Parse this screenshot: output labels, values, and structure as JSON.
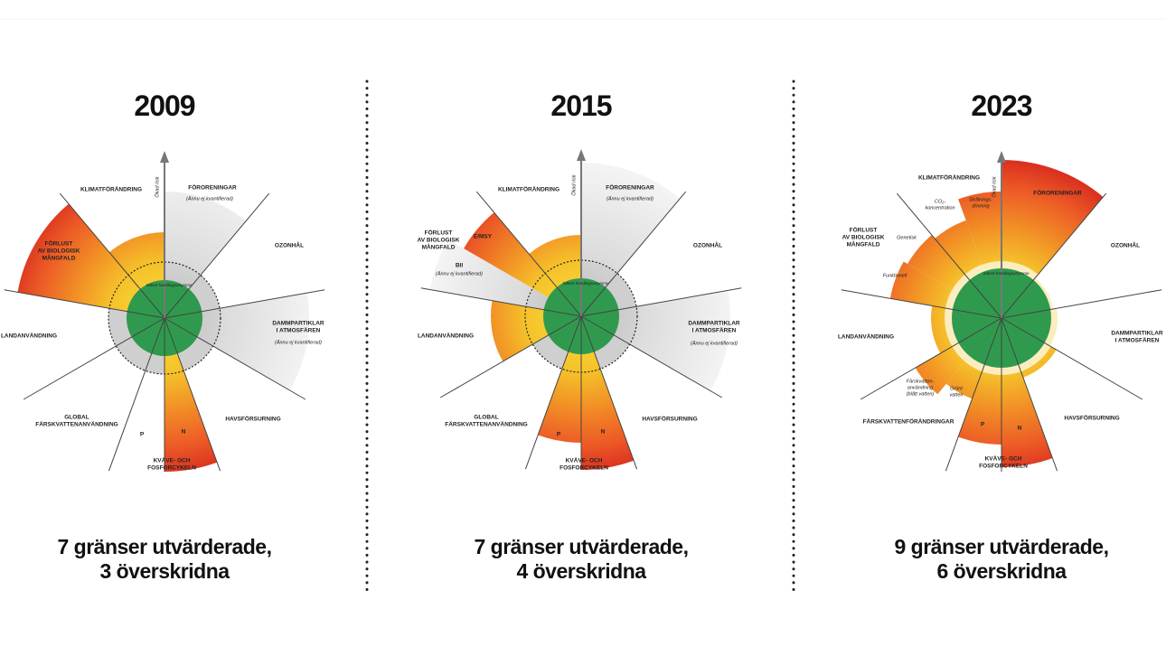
{
  "panels": [
    {
      "year": "2009",
      "labels": [
        "KLIMATFÖRÄNDRING",
        "FÖRORENINGAR",
        "(Ännu ej kvantifierad)",
        "OZONHÅL",
        "FÖRLUST",
        "AV BIOLOGISK",
        "MÅNGFALD",
        "LANDANVÄNDNING",
        "DAMMPARTIKLAR",
        "I ATMOSFÄREN",
        "(Ännu ej kvantifierad)",
        "GLOBAL",
        "FÄRSKVATTENANVÄNDNING",
        "P",
        "N",
        "HAVSFÖRSURNING",
        "KVÄVE- OCH",
        "FOSFORCYKELN"
      ],
      "axis_label": "Ökad risk",
      "safe_label": "Säkert handlingsutrymme",
      "caption": [
        "7 gränser utvärderade,",
        "3 överskridna"
      ]
    },
    {
      "year": "2015",
      "labels": [
        "KLIMATFÖRÄNDRING",
        "FÖRORENINGAR",
        "(Ännu ej kvantifierad)",
        "OZONHÅL",
        "FÖRLUST",
        "AV BIOLOGISK",
        "MÅNGFALD",
        "E/MSY",
        "BII",
        "(Ännu ej kvantifierad)",
        "LANDANVÄNDNING",
        "DAMMPARTIKLAR",
        "I ATMOSFÄREN",
        "(Ännu ej kvantifierad)",
        "GLOBAL",
        "FÄRSKVATTENANVÄNDNING",
        "P",
        "N",
        "HAVSFÖRSURNING",
        "KVÄVE- OCH",
        "FOSFORCYKELN"
      ],
      "axis_label": "Ökad risk",
      "safe_label": "Säkert handlingsutrymme",
      "caption": [
        "7 gränser utvärderade,",
        "4 överskridna"
      ]
    },
    {
      "year": "2023",
      "labels": [
        "KLIMATFÖRÄNDRING",
        "CO₂-",
        "koncentration",
        "Strålnings-",
        "drivning",
        "FÖRORENINGAR",
        "OZONHÅL",
        "FÖRLUST",
        "AV BIOLOGISK",
        "MÅNGFALD",
        "Genetisk",
        "Funktionell",
        "LANDANVÄNDNING",
        "DAMMPARTIKLAR",
        "I ATMOSFÄREN",
        "Färskvatten-",
        "användning",
        "(blått vatten)",
        "Grönt",
        "vatten",
        "FÄRSKVATTENFÖRÄNDRINGAR",
        "P",
        "N",
        "HAVSFÖRSURNING",
        "KVÄVE- OCH",
        "FOSFORCYKELN"
      ],
      "axis_label": "Ökad risk",
      "safe_label": "Säkert handlingsutrymme",
      "caption": [
        "9 gränser utvärderade,",
        "6 överskridna"
      ]
    }
  ]
}
